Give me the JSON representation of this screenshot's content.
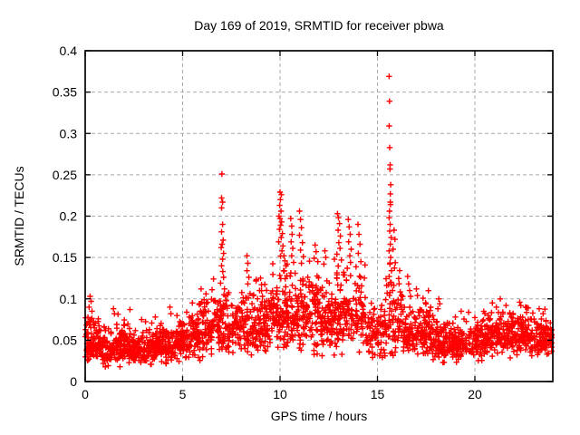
{
  "window": {
    "background_color": "#ffffff"
  },
  "chart_data": {
    "type": "scatter",
    "title": "Day 169 of 2019, SRMTID for receiver pbwa",
    "xlabel": "GPS time / hours",
    "ylabel": "SRMTID / TECUs",
    "xlim": [
      0,
      24
    ],
    "ylim": [
      0,
      0.4
    ],
    "xticks": [
      0,
      5,
      10,
      15,
      20
    ],
    "xtick_labels": [
      "0",
      "5",
      "10",
      "15",
      "20"
    ],
    "yticks": [
      0,
      0.05,
      0.1,
      0.15,
      0.2,
      0.25,
      0.3,
      0.35,
      0.4
    ],
    "ytick_labels": [
      "0",
      "0.05",
      "0.1",
      "0.15",
      "0.2",
      "0.25",
      "0.3",
      "0.35",
      "0.4"
    ],
    "grid": {
      "visible": true,
      "style": "dashed",
      "color": "#a9a9a9"
    },
    "legend": "none",
    "border_color": "#000000",
    "marker": {
      "shape": "plus",
      "color": "#ff0000",
      "size": 7
    },
    "series_name": "SRMTID",
    "seed": 20190169,
    "peak_points": [
      [
        7.02,
        0.251
      ],
      [
        7.0,
        0.222
      ],
      [
        7.05,
        0.217
      ],
      [
        7.0,
        0.21
      ],
      [
        7.05,
        0.19
      ],
      [
        7.0,
        0.181
      ],
      [
        7.08,
        0.171
      ],
      [
        7.03,
        0.166
      ],
      [
        6.98,
        0.162
      ],
      [
        7.1,
        0.155
      ],
      [
        7.05,
        0.148
      ],
      [
        7.0,
        0.14
      ],
      [
        7.06,
        0.133
      ],
      [
        7.1,
        0.126
      ],
      [
        6.95,
        0.119
      ],
      [
        7.15,
        0.112
      ],
      [
        7.12,
        0.105
      ],
      [
        8.3,
        0.152
      ],
      [
        8.35,
        0.143
      ],
      [
        8.3,
        0.134
      ],
      [
        8.4,
        0.126
      ],
      [
        8.35,
        0.118
      ],
      [
        9.0,
        0.125
      ],
      [
        9.05,
        0.117
      ],
      [
        8.95,
        0.11
      ],
      [
        9.1,
        0.103
      ],
      [
        10.0,
        0.229
      ],
      [
        10.07,
        0.226
      ],
      [
        10.02,
        0.22
      ],
      [
        9.98,
        0.213
      ],
      [
        10.05,
        0.206
      ],
      [
        9.95,
        0.2
      ],
      [
        10.0,
        0.197
      ],
      [
        10.08,
        0.193
      ],
      [
        10.03,
        0.189
      ],
      [
        9.97,
        0.184
      ],
      [
        10.12,
        0.179
      ],
      [
        10.06,
        0.174
      ],
      [
        9.93,
        0.169
      ],
      [
        10.15,
        0.164
      ],
      [
        10.1,
        0.158
      ],
      [
        10.2,
        0.152
      ],
      [
        10.25,
        0.146
      ],
      [
        10.3,
        0.14
      ],
      [
        10.18,
        0.134
      ],
      [
        10.35,
        0.128
      ],
      [
        10.55,
        0.197
      ],
      [
        10.6,
        0.188
      ],
      [
        10.62,
        0.178
      ],
      [
        10.57,
        0.169
      ],
      [
        10.65,
        0.161
      ],
      [
        10.6,
        0.152
      ],
      [
        10.7,
        0.144
      ],
      [
        11.0,
        0.206
      ],
      [
        11.05,
        0.196
      ],
      [
        11.1,
        0.186
      ],
      [
        11.0,
        0.177
      ],
      [
        11.15,
        0.168
      ],
      [
        11.05,
        0.159
      ],
      [
        11.2,
        0.151
      ],
      [
        11.1,
        0.143
      ],
      [
        11.8,
        0.165
      ],
      [
        11.85,
        0.157
      ],
      [
        11.75,
        0.149
      ],
      [
        12.3,
        0.158
      ],
      [
        12.35,
        0.15
      ],
      [
        12.25,
        0.142
      ],
      [
        12.95,
        0.203
      ],
      [
        13.0,
        0.198
      ],
      [
        13.05,
        0.191
      ],
      [
        12.98,
        0.183
      ],
      [
        13.1,
        0.176
      ],
      [
        13.02,
        0.168
      ],
      [
        13.08,
        0.161
      ],
      [
        12.92,
        0.154
      ],
      [
        13.15,
        0.147
      ],
      [
        13.5,
        0.196
      ],
      [
        13.55,
        0.187
      ],
      [
        13.6,
        0.178
      ],
      [
        13.52,
        0.169
      ],
      [
        13.65,
        0.16
      ],
      [
        13.58,
        0.152
      ],
      [
        13.62,
        0.144
      ],
      [
        14.0,
        0.19
      ],
      [
        14.05,
        0.178
      ],
      [
        14.1,
        0.166
      ],
      [
        14.02,
        0.155
      ],
      [
        14.15,
        0.145
      ],
      [
        15.6,
        0.369
      ],
      [
        15.62,
        0.339
      ],
      [
        15.6,
        0.309
      ],
      [
        15.63,
        0.283
      ],
      [
        15.65,
        0.262
      ],
      [
        15.64,
        0.257
      ],
      [
        15.68,
        0.238
      ],
      [
        15.66,
        0.227
      ],
      [
        15.66,
        0.217
      ],
      [
        15.67,
        0.214
      ],
      [
        15.62,
        0.206
      ],
      [
        15.6,
        0.198
      ],
      [
        15.65,
        0.19
      ],
      [
        15.63,
        0.182
      ],
      [
        15.7,
        0.174
      ],
      [
        15.66,
        0.166
      ],
      [
        15.6,
        0.158
      ],
      [
        15.68,
        0.15
      ],
      [
        15.64,
        0.142
      ],
      [
        15.72,
        0.134
      ],
      [
        15.6,
        0.127
      ],
      [
        15.67,
        0.12
      ],
      [
        15.85,
        0.183
      ],
      [
        15.9,
        0.172
      ],
      [
        15.8,
        0.16
      ],
      [
        16.55,
        0.127
      ],
      [
        16.6,
        0.118
      ],
      [
        16.65,
        0.11
      ],
      [
        16.7,
        0.103
      ],
      [
        17.0,
        0.112
      ],
      [
        17.05,
        0.104
      ],
      [
        0.25,
        0.103
      ],
      [
        0.3,
        0.097
      ],
      [
        0.2,
        0.09
      ],
      [
        0.35,
        0.085
      ],
      [
        1.45,
        0.088
      ],
      [
        1.5,
        0.082
      ],
      [
        2.3,
        0.087
      ],
      [
        2.9,
        0.075
      ],
      [
        4.35,
        0.09
      ],
      [
        4.4,
        0.082
      ],
      [
        3.6,
        0.078
      ],
      [
        5.95,
        0.112
      ],
      [
        6.2,
        0.106
      ],
      [
        6.1,
        0.099
      ],
      [
        5.85,
        0.094
      ],
      [
        18.15,
        0.1
      ],
      [
        18.2,
        0.094
      ],
      [
        18.1,
        0.088
      ],
      [
        19.3,
        0.085
      ],
      [
        19.0,
        0.078
      ],
      [
        21.3,
        0.1
      ],
      [
        20.9,
        0.095
      ],
      [
        21.1,
        0.09
      ],
      [
        21.6,
        0.092
      ],
      [
        22.3,
        0.096
      ],
      [
        22.6,
        0.09
      ],
      [
        23.3,
        0.088
      ],
      [
        23.5,
        0.082
      ]
    ],
    "baseline_segments": [
      {
        "x0": 0.0,
        "x1": 0.7,
        "n": 90,
        "mean": 0.048,
        "sd_up": 0.016,
        "sd_down": 0.01,
        "max": 0.095,
        "min": 0.018
      },
      {
        "x0": 0.7,
        "x1": 2.2,
        "n": 170,
        "mean": 0.042,
        "sd_up": 0.012,
        "sd_down": 0.009,
        "max": 0.082,
        "min": 0.016
      },
      {
        "x0": 2.2,
        "x1": 3.4,
        "n": 130,
        "mean": 0.04,
        "sd_up": 0.011,
        "sd_down": 0.009,
        "max": 0.075,
        "min": 0.015
      },
      {
        "x0": 3.4,
        "x1": 4.6,
        "n": 130,
        "mean": 0.043,
        "sd_up": 0.013,
        "sd_down": 0.009,
        "max": 0.08,
        "min": 0.018
      },
      {
        "x0": 4.6,
        "x1": 5.4,
        "n": 90,
        "mean": 0.048,
        "sd_up": 0.015,
        "sd_down": 0.01,
        "max": 0.09,
        "min": 0.02
      },
      {
        "x0": 5.4,
        "x1": 6.5,
        "n": 120,
        "mean": 0.058,
        "sd_up": 0.018,
        "sd_down": 0.012,
        "max": 0.105,
        "min": 0.025
      },
      {
        "x0": 6.5,
        "x1": 7.6,
        "n": 110,
        "mean": 0.068,
        "sd_up": 0.022,
        "sd_down": 0.014,
        "max": 0.125,
        "min": 0.03
      },
      {
        "x0": 7.6,
        "x1": 9.5,
        "n": 190,
        "mean": 0.068,
        "sd_up": 0.022,
        "sd_down": 0.015,
        "max": 0.13,
        "min": 0.028
      },
      {
        "x0": 9.5,
        "x1": 11.5,
        "n": 220,
        "mean": 0.08,
        "sd_up": 0.028,
        "sd_down": 0.018,
        "max": 0.155,
        "min": 0.03
      },
      {
        "x0": 11.5,
        "x1": 12.7,
        "n": 130,
        "mean": 0.078,
        "sd_up": 0.026,
        "sd_down": 0.018,
        "max": 0.15,
        "min": 0.03
      },
      {
        "x0": 12.7,
        "x1": 14.4,
        "n": 170,
        "mean": 0.082,
        "sd_up": 0.03,
        "sd_down": 0.02,
        "max": 0.16,
        "min": 0.032
      },
      {
        "x0": 14.4,
        "x1": 15.35,
        "n": 80,
        "mean": 0.058,
        "sd_up": 0.016,
        "sd_down": 0.012,
        "max": 0.1,
        "min": 0.028
      },
      {
        "x0": 15.35,
        "x1": 16.3,
        "n": 90,
        "mean": 0.075,
        "sd_up": 0.03,
        "sd_down": 0.02,
        "max": 0.15,
        "min": 0.03
      },
      {
        "x0": 16.3,
        "x1": 18.0,
        "n": 170,
        "mean": 0.056,
        "sd_up": 0.018,
        "sd_down": 0.012,
        "max": 0.11,
        "min": 0.025
      },
      {
        "x0": 18.0,
        "x1": 20.5,
        "n": 240,
        "mean": 0.046,
        "sd_up": 0.013,
        "sd_down": 0.01,
        "max": 0.09,
        "min": 0.02
      },
      {
        "x0": 20.5,
        "x1": 23.0,
        "n": 260,
        "mean": 0.056,
        "sd_up": 0.016,
        "sd_down": 0.011,
        "max": 0.1,
        "min": 0.024
      },
      {
        "x0": 23.0,
        "x1": 23.95,
        "n": 100,
        "mean": 0.052,
        "sd_up": 0.014,
        "sd_down": 0.01,
        "max": 0.09,
        "min": 0.022
      }
    ]
  }
}
